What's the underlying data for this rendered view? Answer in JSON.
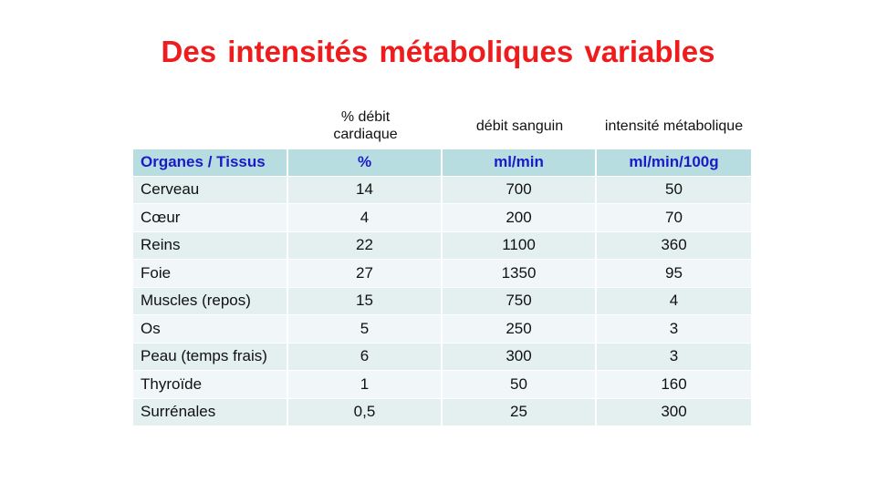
{
  "title": "Des intensités métaboliques variables",
  "column_headers": {
    "percent_cardiac_output": "% débit\ncardiaque",
    "blood_flow": "débit sanguin",
    "metabolic_intensity": "intensité métabolique"
  },
  "table": {
    "header": [
      "Organes / Tissus",
      "%",
      "ml/min",
      "ml/min/100g"
    ],
    "rows": [
      [
        "Cerveau",
        "14",
        "700",
        "50"
      ],
      [
        "Cœur",
        "4",
        "200",
        "70"
      ],
      [
        "Reins",
        "22",
        "1100",
        "360"
      ],
      [
        "Foie",
        "27",
        "1350",
        "95"
      ],
      [
        "Muscles (repos)",
        "15",
        "750",
        "4"
      ],
      [
        "Os",
        "5",
        "250",
        "3"
      ],
      [
        "Peau (temps frais)",
        "6",
        "300",
        "3"
      ],
      [
        "Thyroïde",
        "1",
        "50",
        "160"
      ],
      [
        "Surrénales",
        "0,5",
        "25",
        "300"
      ]
    ]
  },
  "colors": {
    "title": "#ee1c1c",
    "header_text": "#1a1ac8",
    "header_bg": "#b8dde1",
    "row_bg_a": "#f1f7f8",
    "row_bg_b": "#e4eff0"
  }
}
